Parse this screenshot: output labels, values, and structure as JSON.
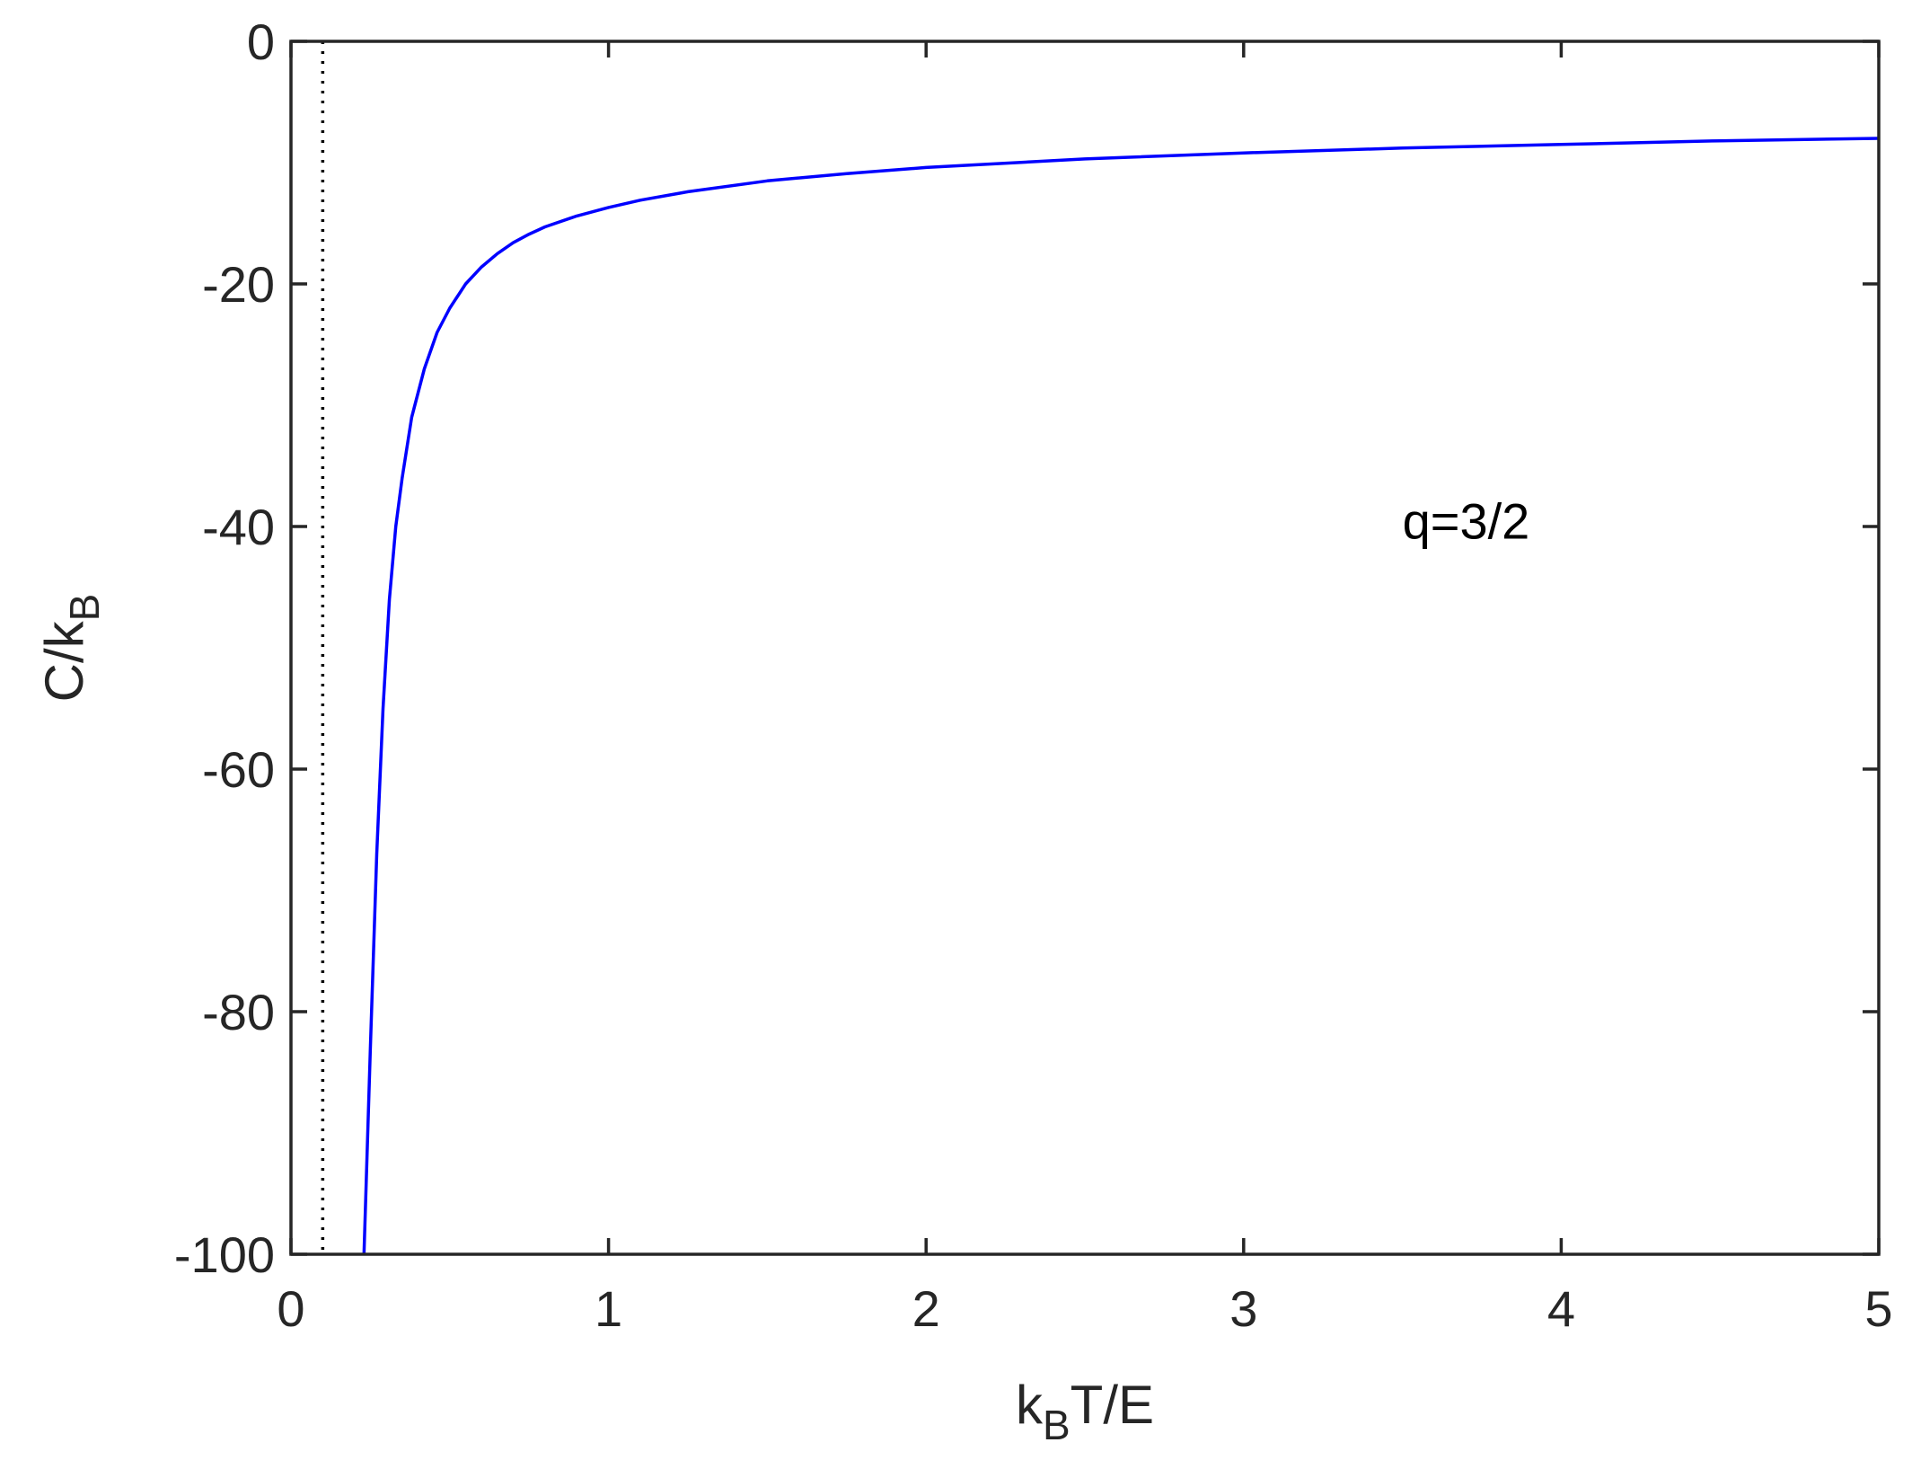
{
  "chart_data": {
    "type": "line",
    "title": "",
    "xlabel": "k_B T/E",
    "ylabel": "C/k_B",
    "x_label_parts": {
      "main": "k",
      "sub": "B",
      "rest": "T/E"
    },
    "y_label_parts": {
      "main": "C/k",
      "sub": "B"
    },
    "xlim": [
      0,
      5
    ],
    "ylim": [
      -100,
      0
    ],
    "x_ticks": [
      0,
      1,
      2,
      3,
      4,
      5
    ],
    "x_tick_labels": [
      "0",
      "1",
      "2",
      "3",
      "4",
      "5"
    ],
    "y_ticks": [
      0,
      -20,
      -40,
      -60,
      -80,
      -100
    ],
    "y_tick_labels": [
      "0",
      "-20",
      "-40",
      "-60",
      "-80",
      "-100"
    ],
    "grid": false,
    "annotation": {
      "text": "q=3/2",
      "x": 3.5,
      "y": -41
    },
    "vertical_line": {
      "x": 0.1,
      "style": "dotted",
      "color": "#000000"
    },
    "series": [
      {
        "color": "#0000ff",
        "x": [
          0.23,
          0.25,
          0.27,
          0.29,
          0.31,
          0.33,
          0.35,
          0.38,
          0.42,
          0.46,
          0.5,
          0.55,
          0.6,
          0.65,
          0.7,
          0.75,
          0.8,
          0.9,
          1.0,
          1.1,
          1.25,
          1.5,
          1.75,
          2.0,
          2.5,
          3.0,
          3.5,
          4.0,
          4.5,
          5.0
        ],
        "values": [
          -100,
          -83,
          -67,
          -55,
          -46,
          -40,
          -36,
          -31,
          -27,
          -24,
          -22,
          -20,
          -18.6,
          -17.5,
          -16.6,
          -15.9,
          -15.3,
          -14.4,
          -13.7,
          -13.1,
          -12.4,
          -11.5,
          -10.9,
          -10.4,
          -9.7,
          -9.2,
          -8.8,
          -8.5,
          -8.2,
          -8.0
        ]
      }
    ]
  }
}
